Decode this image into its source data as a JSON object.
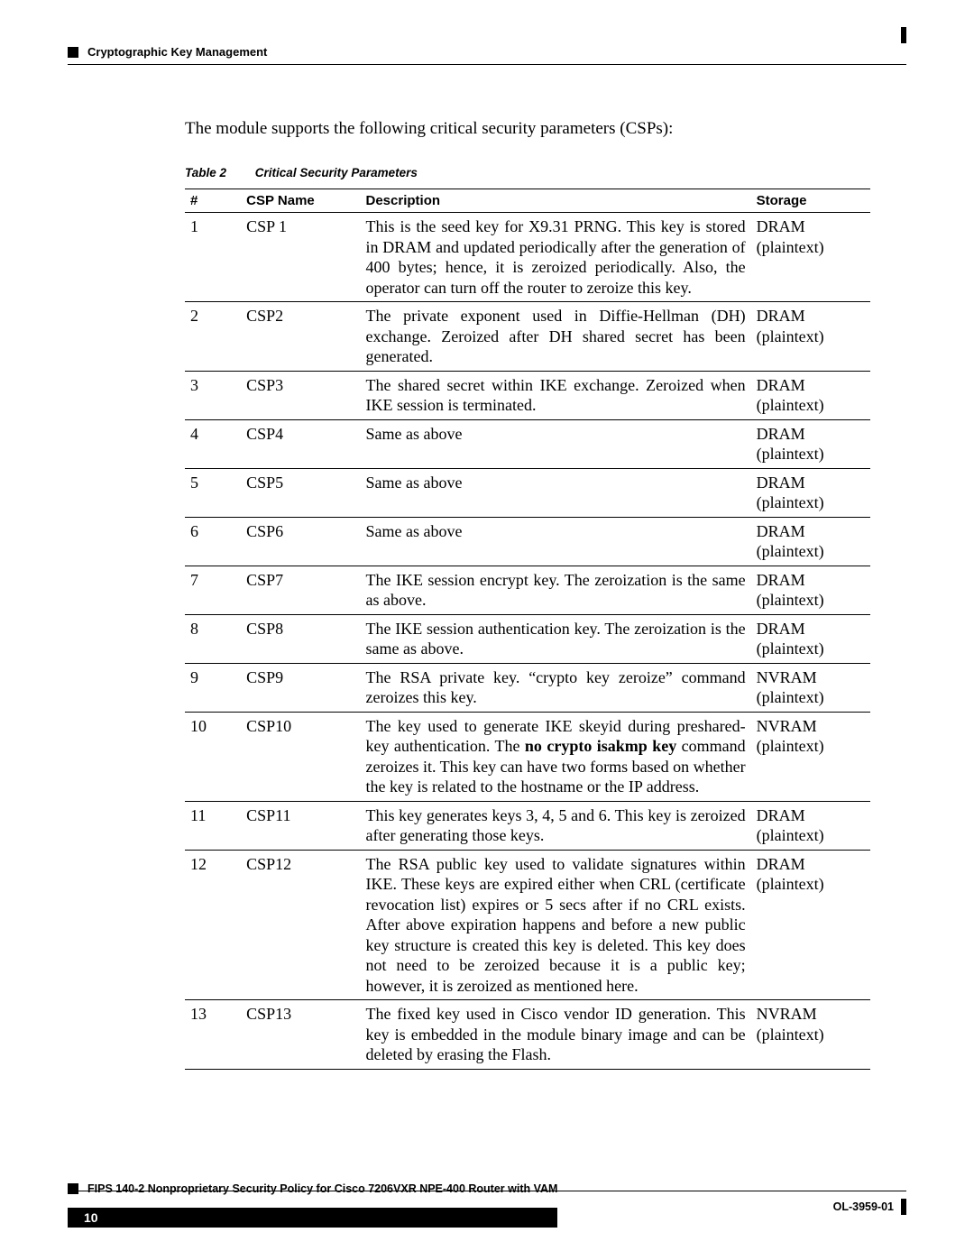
{
  "header": {
    "section_title": "Cryptographic Key Management"
  },
  "intro": "The module supports the following critical security parameters (CSPs):",
  "table": {
    "number": "Table 2",
    "title": "Critical Security Parameters",
    "columns": [
      "#",
      "CSP Name",
      "Description",
      "Storage"
    ],
    "rows": [
      {
        "num": "1",
        "name": "CSP 1",
        "desc": "This is the seed key for X9.31 PRNG. This key is stored in DRAM and updated periodically after the generation of 400 bytes; hence, it is zeroized periodically. Also, the operator can turn off the router to zeroize this key.",
        "stor": "DRAM (plaintext)"
      },
      {
        "num": "2",
        "name": "CSP2",
        "desc": "The private exponent used in Diffie-Hellman (DH) exchange. Zeroized after DH shared secret has been generated.",
        "stor": "DRAM (plaintext)"
      },
      {
        "num": "3",
        "name": "CSP3",
        "desc": "The shared secret within IKE exchange. Zeroized when IKE session is terminated.",
        "stor": "DRAM (plaintext)"
      },
      {
        "num": "4",
        "name": "CSP4",
        "desc": "Same as above",
        "stor": "DRAM (plaintext)"
      },
      {
        "num": "5",
        "name": "CSP5",
        "desc": "Same as above",
        "stor": "DRAM (plaintext)"
      },
      {
        "num": "6",
        "name": "CSP6",
        "desc": "Same as above",
        "stor": "DRAM (plaintext)"
      },
      {
        "num": "7",
        "name": "CSP7",
        "desc": "The IKE session encrypt key. The zeroization is the same as above.",
        "stor": "DRAM (plaintext)"
      },
      {
        "num": "8",
        "name": "CSP8",
        "desc": "The IKE session authentication key. The zeroization is the same as above.",
        "stor": "DRAM (plaintext)"
      },
      {
        "num": "9",
        "name": "CSP9",
        "desc": "The RSA private key. “crypto key zeroize” command zeroizes this key.",
        "stor": "NVRAM (plaintext)"
      },
      {
        "num": "10",
        "name": "CSP10",
        "desc_html": "The key used to generate IKE skeyid during preshared-key authentication. The <b>no crypto isakmp key</b> command zeroizes it. This key can have two forms based on whether the key is related to the hostname or the IP address.",
        "stor": "NVRAM (plaintext)"
      },
      {
        "num": "11",
        "name": "CSP11",
        "desc": "This key generates keys 3, 4, 5 and 6. This key is zeroized after generating those keys.",
        "stor": "DRAM (plaintext)"
      },
      {
        "num": "12",
        "name": "CSP12",
        "desc": "The RSA public key used to validate signatures within IKE. These keys are expired either when CRL (certificate revocation list) expires or 5 secs after if no CRL exists. After above expiration happens and before a new public key structure is created this key is deleted. This key does not need to be zeroized because it is a public key; however, it is zeroized as mentioned here.",
        "stor": "DRAM (plaintext)"
      },
      {
        "num": "13",
        "name": "CSP13",
        "desc": "The fixed key used in Cisco vendor ID generation. This key is embedded in the module binary image and can be deleted by erasing the Flash.",
        "stor": "NVRAM (plaintext)"
      }
    ]
  },
  "footer": {
    "doc_title": "FIPS 140-2 Nonproprietary Security Policy for Cisco 7206VXR NPE-400 Router with VAM",
    "page_number": "10",
    "doc_id": "OL-3959-01"
  }
}
